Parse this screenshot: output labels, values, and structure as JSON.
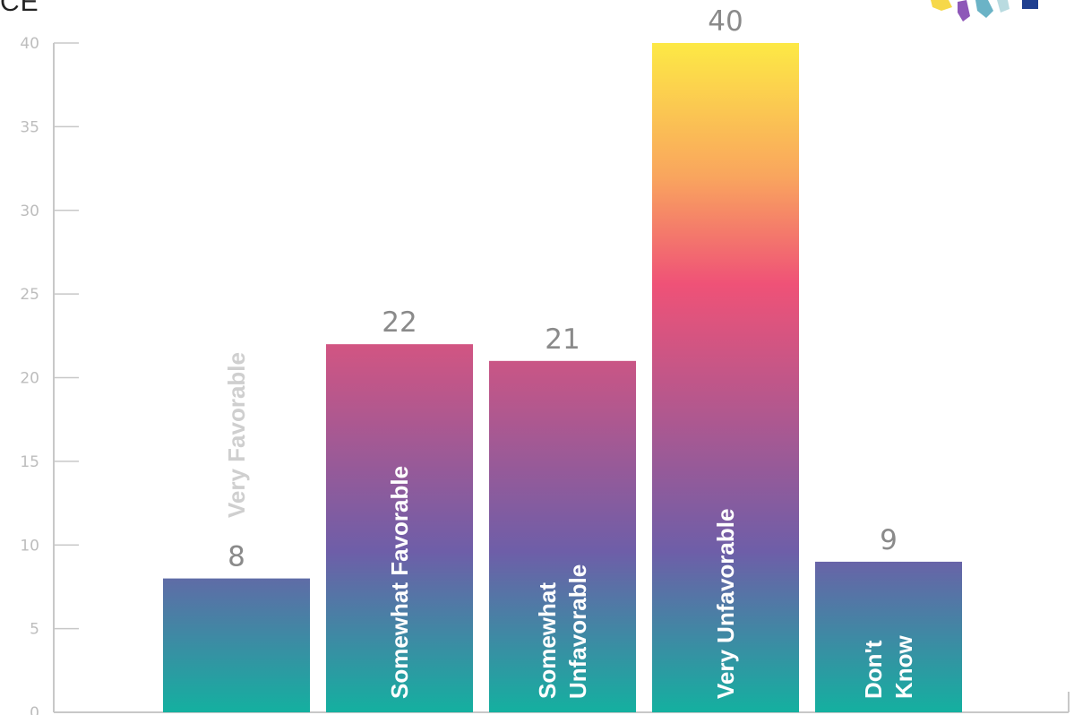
{
  "corner_text": "CE",
  "colors": {
    "grad_top": "#fde945",
    "grad_orange": "#f9a55e",
    "grad_pink": "#ef5277",
    "grad_purple": "#6e5ea8",
    "grad_teal": "#14b0a0",
    "axis": "#c8c8c8",
    "tick_text": "#bdbdbd",
    "value_text": "#8a8a8a"
  },
  "logo_icon": "map-logo-icon",
  "chart_data": {
    "type": "bar",
    "categories": [
      "Very Favorable",
      "Somewhat Favorable",
      "Somewhat Unfavorable",
      "Very Unfavorable",
      "Don't Know"
    ],
    "category_lines": [
      [
        "Very Favorable"
      ],
      [
        "Somewhat  Favorable"
      ],
      [
        "Somewhat",
        "Unfavorable"
      ],
      [
        "Very  Unfavorable"
      ],
      [
        "Don't",
        "Know"
      ]
    ],
    "values": [
      8,
      22,
      21,
      40,
      9
    ],
    "value_labels": [
      "8",
      "22",
      "21",
      "40",
      "9"
    ],
    "yticks": [
      0,
      5,
      10,
      15,
      20,
      25,
      30,
      35,
      40
    ],
    "ylim": [
      0,
      40
    ],
    "title": "",
    "xlabel": "",
    "ylabel": "",
    "grid": false,
    "legend": "none"
  }
}
